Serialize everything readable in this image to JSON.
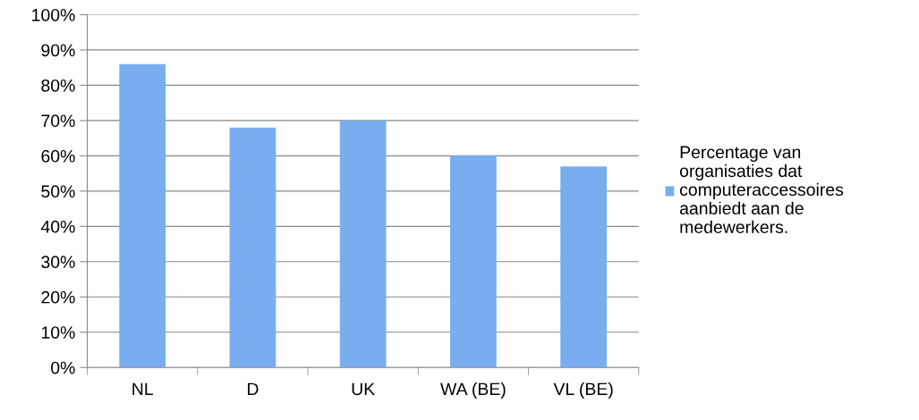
{
  "chart_data": {
    "type": "bar",
    "categories": [
      "NL",
      "D",
      "UK",
      "WA (BE)",
      "VL (BE)"
    ],
    "series": [
      {
        "name": "Percentage van organisaties dat computeraccessoires aanbiedt aan de medewerkers.",
        "color": "#78aef0",
        "values": [
          86,
          68,
          70,
          60,
          57
        ]
      }
    ],
    "ylim": [
      0,
      100
    ],
    "yticks": [
      {
        "value": 0,
        "label": "0%"
      },
      {
        "value": 10,
        "label": "10%"
      },
      {
        "value": 20,
        "label": "20%"
      },
      {
        "value": 30,
        "label": "30%"
      },
      {
        "value": 40,
        "label": "40%"
      },
      {
        "value": 50,
        "label": "50%"
      },
      {
        "value": 60,
        "label": "60%"
      },
      {
        "value": 70,
        "label": "70%"
      },
      {
        "value": 80,
        "label": "80%"
      },
      {
        "value": 90,
        "label": "90%"
      },
      {
        "value": 100,
        "label": "100%"
      }
    ],
    "grid": "y",
    "legend": "right"
  }
}
